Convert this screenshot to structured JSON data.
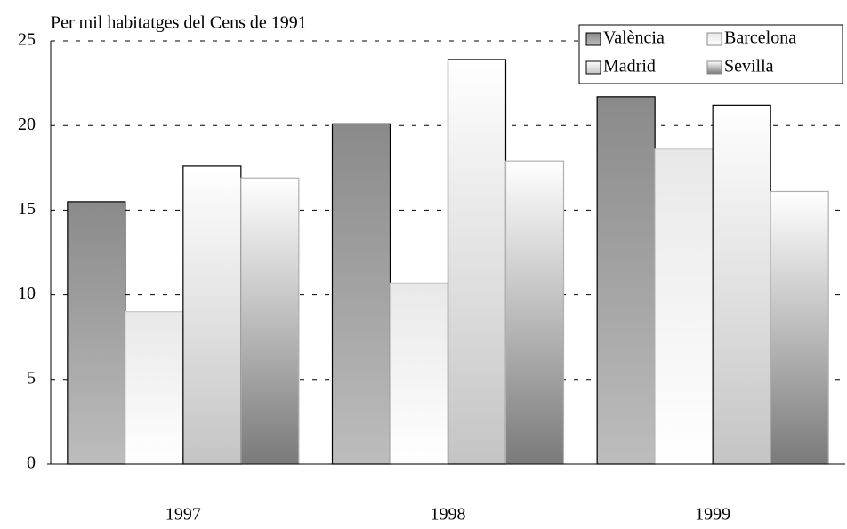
{
  "chart_data": {
    "type": "bar",
    "title": "Per mil habitatges del Cens de 1991",
    "categories": [
      "1997",
      "1998",
      "1999"
    ],
    "series": [
      {
        "name": "València",
        "color": "#8a8a8a",
        "color_bottom": "#bdbdbd",
        "stroke": "#000000",
        "values": [
          15.5,
          20.1,
          21.7
        ]
      },
      {
        "name": "Barcelona",
        "color": "#e8e8e8",
        "color_bottom": "#ffffff",
        "stroke": "#c8c8c8",
        "values": [
          9.0,
          10.7,
          18.6
        ]
      },
      {
        "name": "Madrid",
        "color": "#ffffff",
        "color_bottom": "#c4c4c4",
        "stroke": "#000000",
        "values": [
          17.6,
          23.9,
          21.2
        ]
      },
      {
        "name": "Sevilla",
        "color": "#ffffff",
        "color_bottom": "#7a7a7a",
        "stroke": "#b0b0b0",
        "values": [
          16.9,
          17.9,
          16.1
        ]
      }
    ],
    "ylim": [
      0,
      25
    ],
    "yticks": [
      0,
      5,
      10,
      15,
      20,
      25
    ],
    "grid": true,
    "legend": "top-right"
  }
}
